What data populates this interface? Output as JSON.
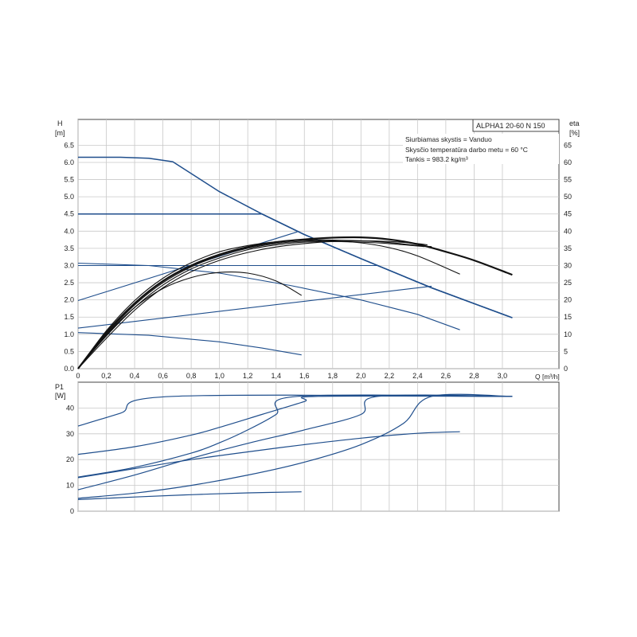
{
  "chart_data": {
    "type": "line",
    "title": "ALPHA1 20-60 N 150",
    "info": [
      "Siurbiamas skystis = Vanduo",
      "Skysčio temperatūra darbo metu = 60 °C",
      "Tankis = 983.2 kg/m³"
    ],
    "x_axis": {
      "label": "Q [m³/h]",
      "range": [
        0,
        3.4
      ],
      "ticks": [
        "0",
        "0,2",
        "0,4",
        "0,6",
        "0,8",
        "1,0",
        "1,2",
        "1,4",
        "1,6",
        "1,8",
        "2,0",
        "2,2",
        "2,4",
        "2,6",
        "2,8",
        "3,0"
      ],
      "tick_values": [
        0,
        0.2,
        0.4,
        0.6,
        0.8,
        1.0,
        1.2,
        1.4,
        1.6,
        1.8,
        2.0,
        2.2,
        2.4,
        2.6,
        2.8,
        3.0
      ]
    },
    "head_axis": {
      "label_line1": "H",
      "label_line2": "[m]",
      "range": [
        0,
        7.25
      ],
      "ticks": [
        "0.0",
        "0.5",
        "1.0",
        "1.5",
        "2.0",
        "2.5",
        "3.0",
        "3.5",
        "4.0",
        "4.5",
        "5.0",
        "5.5",
        "6.0",
        "6.5"
      ],
      "tick_values": [
        0,
        0.5,
        1.0,
        1.5,
        2.0,
        2.5,
        3.0,
        3.5,
        4.0,
        4.5,
        5.0,
        5.5,
        6.0,
        6.5
      ]
    },
    "eta_axis": {
      "label_line1": "eta",
      "label_line2": "[%]",
      "range": [
        0,
        72.5
      ],
      "ticks": [
        "0",
        "5",
        "10",
        "15",
        "20",
        "25",
        "30",
        "35",
        "40",
        "45",
        "50",
        "55",
        "60",
        "65"
      ],
      "tick_values": [
        0,
        5,
        10,
        15,
        20,
        25,
        30,
        35,
        40,
        45,
        50,
        55,
        60,
        65
      ]
    },
    "power_axis": {
      "label_line1": "P1",
      "label_line2": "[W]",
      "range": [
        0,
        50
      ],
      "ticks": [
        "0",
        "10",
        "20",
        "30",
        "40"
      ],
      "tick_values": [
        0,
        10,
        20,
        30,
        40
      ]
    },
    "head_series": [
      {
        "points": [
          [
            0,
            6.15
          ],
          [
            0.3,
            6.15
          ],
          [
            0.5,
            6.12
          ],
          [
            0.67,
            6.02
          ],
          [
            1.0,
            5.15
          ],
          [
            1.3,
            4.5
          ],
          [
            1.6,
            3.9
          ],
          [
            2.0,
            3.2
          ],
          [
            2.5,
            2.35
          ],
          [
            3.07,
            1.48
          ]
        ]
      },
      {
        "points": [
          [
            0,
            4.5
          ],
          [
            1.3,
            4.5
          ],
          [
            1.6,
            3.9
          ],
          [
            2.0,
            3.2
          ],
          [
            2.5,
            2.35
          ],
          [
            3.07,
            1.48
          ]
        ]
      },
      {
        "points": [
          [
            0,
            3.0
          ],
          [
            2.12,
            3.0
          ]
        ]
      },
      {
        "points": [
          [
            0,
            3.07
          ],
          [
            0.5,
            3.0
          ],
          [
            1.0,
            2.78
          ],
          [
            1.5,
            2.42
          ],
          [
            2.0,
            2.0
          ],
          [
            2.4,
            1.58
          ],
          [
            2.7,
            1.13
          ]
        ]
      },
      {
        "points": [
          [
            0,
            1.98
          ],
          [
            1.55,
            3.98
          ]
        ]
      },
      {
        "points": [
          [
            0,
            1.18
          ],
          [
            2.5,
            2.4
          ]
        ]
      },
      {
        "points": [
          [
            0,
            1.05
          ],
          [
            0.5,
            0.97
          ],
          [
            1.0,
            0.78
          ],
          [
            1.3,
            0.6
          ],
          [
            1.58,
            0.4
          ]
        ]
      }
    ],
    "eta_series": [
      {
        "points": [
          [
            0,
            0
          ],
          [
            0.2,
            10.5
          ],
          [
            0.4,
            19
          ],
          [
            0.6,
            25.5
          ],
          [
            0.8,
            30
          ],
          [
            1.0,
            33.2
          ],
          [
            1.2,
            35.4
          ],
          [
            1.4,
            36.8
          ],
          [
            1.6,
            37.6
          ],
          [
            1.8,
            38.1
          ],
          [
            2.0,
            38.2
          ],
          [
            2.2,
            37.6
          ],
          [
            2.4,
            36.2
          ],
          [
            2.6,
            34
          ],
          [
            2.8,
            31.5
          ],
          [
            3.07,
            27.3
          ]
        ]
      },
      {
        "points": [
          [
            0,
            0
          ],
          [
            0.2,
            11
          ],
          [
            0.4,
            19.8
          ],
          [
            0.6,
            26.3
          ],
          [
            0.8,
            30.8
          ],
          [
            1.0,
            34
          ],
          [
            1.2,
            35.8
          ],
          [
            1.4,
            36.9
          ],
          [
            1.6,
            37.4
          ],
          [
            1.8,
            37.4
          ],
          [
            2.0,
            37.2
          ],
          [
            2.2,
            36.7
          ],
          [
            2.4,
            35.8
          ],
          [
            2.5,
            35.5
          ]
        ]
      },
      {
        "points": [
          [
            0,
            0
          ],
          [
            0.2,
            10
          ],
          [
            0.4,
            18.5
          ],
          [
            0.6,
            25
          ],
          [
            0.8,
            29.6
          ],
          [
            1.0,
            32.8
          ],
          [
            1.2,
            35
          ],
          [
            1.4,
            36.4
          ],
          [
            1.6,
            37.1
          ],
          [
            1.8,
            37.2
          ],
          [
            2.0,
            36.6
          ],
          [
            2.2,
            35.2
          ],
          [
            2.4,
            32.8
          ],
          [
            2.7,
            27.5
          ]
        ]
      },
      {
        "points": [
          [
            0,
            0
          ],
          [
            0.2,
            9.5
          ],
          [
            0.4,
            17.8
          ],
          [
            0.6,
            24.3
          ],
          [
            0.8,
            29
          ],
          [
            1.0,
            32.2
          ],
          [
            1.2,
            34.6
          ],
          [
            1.4,
            36
          ],
          [
            1.6,
            36.8
          ],
          [
            1.8,
            37
          ],
          [
            2.0,
            36.8
          ],
          [
            2.2,
            36.4
          ],
          [
            2.45,
            35.5
          ]
        ]
      },
      {
        "points": [
          [
            0,
            0
          ],
          [
            0.2,
            8.8
          ],
          [
            0.4,
            17
          ],
          [
            0.6,
            23.5
          ],
          [
            0.8,
            28.2
          ],
          [
            1.0,
            31.5
          ],
          [
            1.2,
            33.8
          ],
          [
            1.4,
            35.4
          ],
          [
            1.6,
            36.4
          ],
          [
            1.8,
            37
          ],
          [
            2.0,
            37.2
          ],
          [
            2.2,
            37
          ],
          [
            2.4,
            36.4
          ],
          [
            2.47,
            36
          ]
        ]
      },
      {
        "points": [
          [
            0,
            0
          ],
          [
            0.2,
            9.8
          ],
          [
            0.4,
            17.8
          ],
          [
            0.6,
            23.3
          ],
          [
            0.8,
            26.5
          ],
          [
            1.0,
            28
          ],
          [
            1.2,
            27.8
          ],
          [
            1.4,
            25.5
          ],
          [
            1.58,
            21.3
          ]
        ]
      }
    ],
    "power_series": [
      {
        "points": [
          [
            0,
            33
          ],
          [
            0.3,
            38
          ],
          [
            0.67,
            44.5
          ],
          [
            3.07,
            44.5
          ]
        ]
      },
      {
        "points": [
          [
            0,
            22
          ],
          [
            0.4,
            25
          ],
          [
            0.8,
            29.5
          ],
          [
            1.0,
            32.5
          ],
          [
            1.3,
            37.5
          ],
          [
            1.6,
            42.5
          ],
          [
            1.7,
            44.5
          ],
          [
            3.07,
            44.5
          ]
        ]
      },
      {
        "points": [
          [
            0,
            13.2
          ],
          [
            0.4,
            17
          ],
          [
            0.8,
            22.5
          ],
          [
            1.0,
            26.5
          ],
          [
            1.2,
            31.5
          ],
          [
            1.4,
            37.5
          ],
          [
            1.55,
            44.5
          ],
          [
            3.07,
            44.5
          ]
        ]
      },
      {
        "points": [
          [
            0,
            8.3
          ],
          [
            0.4,
            14
          ],
          [
            0.8,
            20.5
          ],
          [
            1.2,
            26.3
          ],
          [
            1.6,
            31.5
          ],
          [
            2.0,
            37.5
          ],
          [
            2.12,
            44.5
          ],
          [
            3.07,
            44.5
          ]
        ]
      },
      {
        "points": [
          [
            0,
            13
          ],
          [
            0.4,
            16.5
          ],
          [
            0.8,
            20
          ],
          [
            1.2,
            23
          ],
          [
            1.6,
            25.8
          ],
          [
            2.0,
            28.3
          ],
          [
            2.4,
            30.2
          ],
          [
            2.7,
            30.8
          ]
        ]
      },
      {
        "points": [
          [
            0,
            5
          ],
          [
            0.4,
            7
          ],
          [
            0.8,
            10
          ],
          [
            1.2,
            14
          ],
          [
            1.6,
            19
          ],
          [
            2.0,
            25.8
          ],
          [
            2.3,
            34
          ],
          [
            2.5,
            44.5
          ],
          [
            3.07,
            44.5
          ]
        ]
      },
      {
        "points": [
          [
            0,
            4.5
          ],
          [
            0.4,
            5.5
          ],
          [
            0.8,
            6.4
          ],
          [
            1.2,
            7.1
          ],
          [
            1.58,
            7.5
          ]
        ]
      }
    ]
  }
}
